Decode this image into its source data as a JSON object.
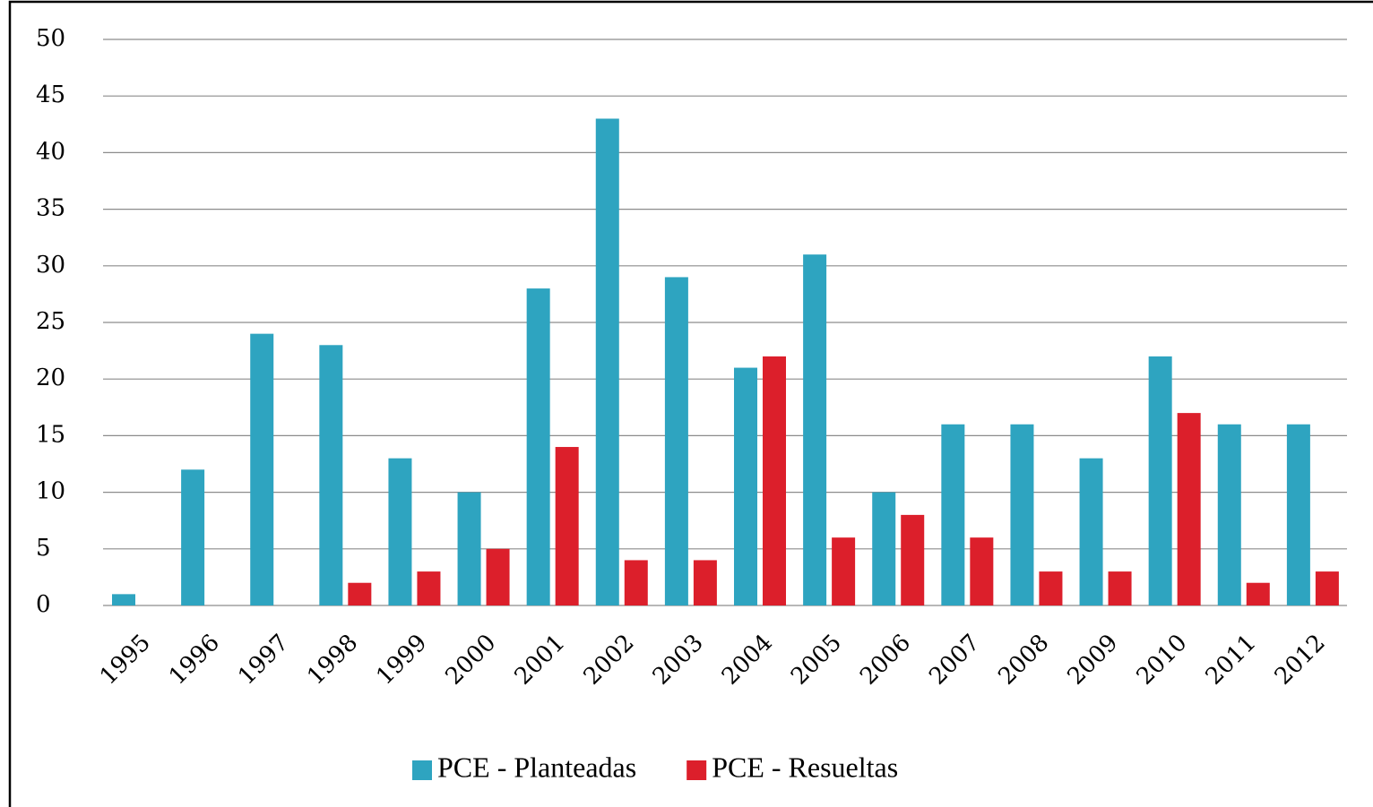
{
  "chart_data": {
    "type": "bar",
    "categories": [
      "1995",
      "1996",
      "1997",
      "1998",
      "1999",
      "2000",
      "2001",
      "2002",
      "2003",
      "2004",
      "2005",
      "2006",
      "2007",
      "2008",
      "2009",
      "2010",
      "2011",
      "2012"
    ],
    "series": [
      {
        "name": "PCE - Planteadas",
        "color": "#2ea4c0",
        "values": [
          1,
          12,
          24,
          23,
          13,
          10,
          28,
          43,
          29,
          21,
          31,
          10,
          16,
          16,
          13,
          22,
          16,
          16
        ]
      },
      {
        "name": "PCE - Resueltas",
        "color": "#dc1f2b",
        "values": [
          0,
          0,
          0,
          2,
          3,
          5,
          14,
          4,
          4,
          22,
          6,
          8,
          6,
          3,
          3,
          17,
          2,
          3
        ]
      }
    ],
    "ylim": [
      0,
      50
    ],
    "yticks": [
      0,
      5,
      10,
      15,
      20,
      25,
      30,
      35,
      40,
      45,
      50
    ],
    "grid": true,
    "legend": "bottom"
  }
}
